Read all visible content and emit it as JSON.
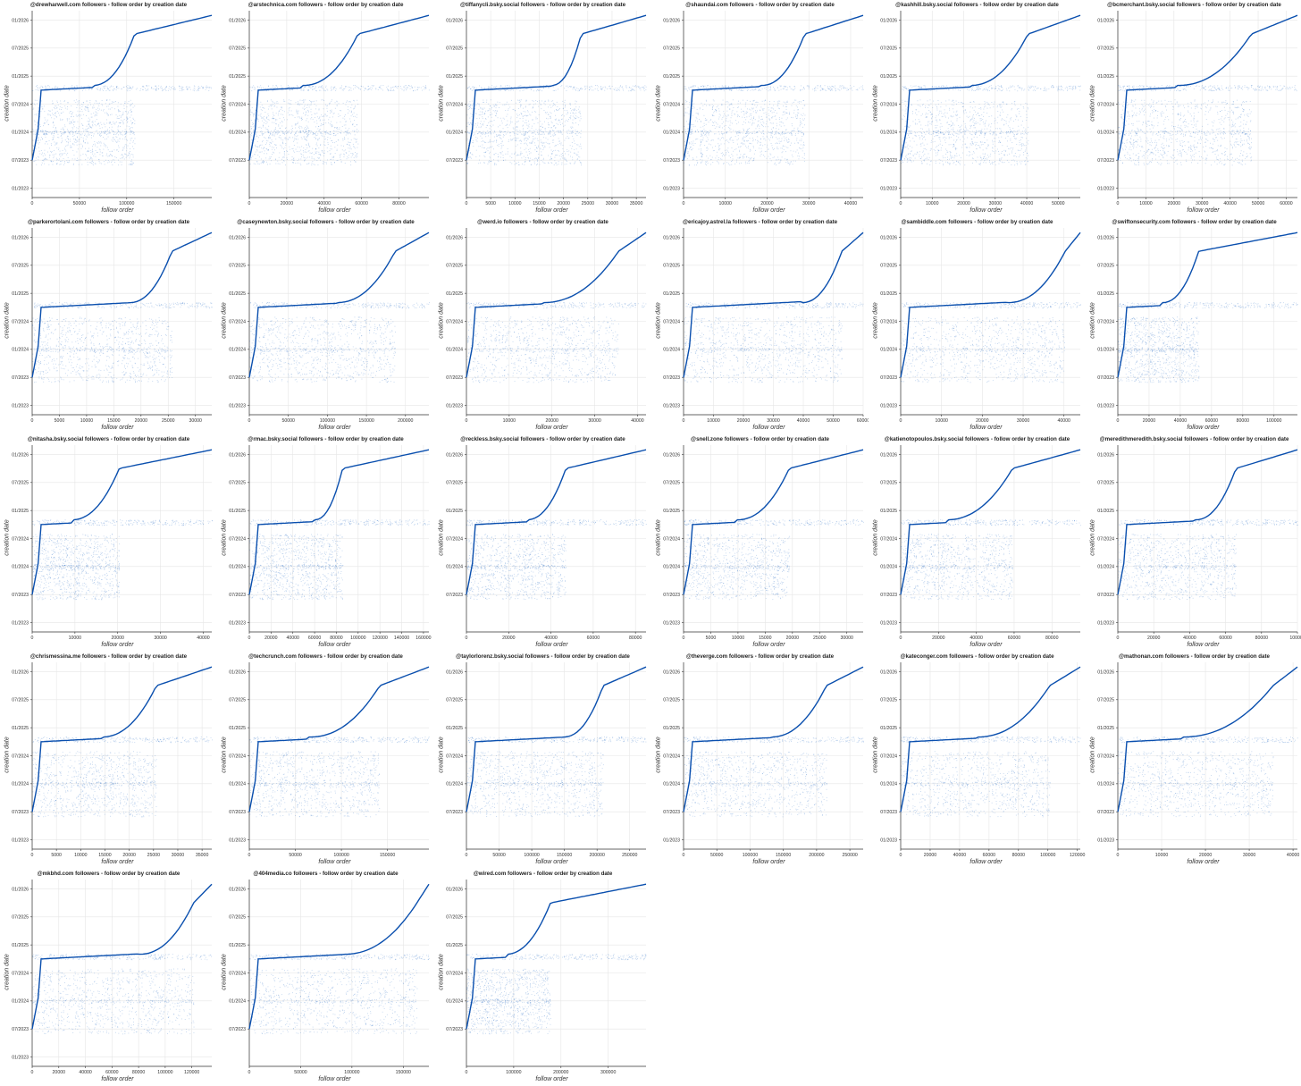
{
  "colors": {
    "points": "#1d63c2",
    "curve": "#0a4fae",
    "grid": "#e6e6e6",
    "axis": "#333333"
  },
  "chart_data": [
    {
      "type": "scatter",
      "title": "@drewharwell.com followers - follow order by creation date",
      "xlabel": "follow order",
      "ylabel": "creation date",
      "xlim": [
        0,
        190000
      ],
      "x_ticks": [
        "0",
        "50000",
        "100000",
        "150000"
      ],
      "y_ticks": [
        "01/2023",
        "07/2023",
        "01/2024",
        "07/2024",
        "01/2025",
        "07/2025",
        "01/2026"
      ],
      "grid": true,
      "legend": "none"
    },
    {
      "type": "scatter",
      "title": "@arstechnica.com followers - follow order by creation date",
      "xlabel": "follow order",
      "ylabel": "creation date",
      "xlim": [
        0,
        96000
      ],
      "x_ticks": [
        "0",
        "20000",
        "40000",
        "60000",
        "80000"
      ],
      "y_ticks": [
        "07/2023",
        "01/2024",
        "07/2024",
        "01/2025",
        "07/2025",
        "01/2026"
      ],
      "grid": true,
      "legend": "none"
    },
    {
      "type": "scatter",
      "title": "@tiffanycli.bsky.social followers - follow order by creation date",
      "xlabel": "follow order",
      "ylabel": "creation date",
      "xlim": [
        0,
        37000
      ],
      "x_ticks": [
        "0",
        "5000",
        "10000",
        "15000",
        "20000",
        "25000",
        "30000",
        "35000"
      ],
      "y_ticks": [
        "07/2023",
        "01/2024",
        "07/2024",
        "01/2025",
        "07/2025",
        "01/2026"
      ],
      "grid": true,
      "legend": "none"
    },
    {
      "type": "scatter",
      "title": "@shaundai.com followers - follow order by creation date",
      "xlabel": "follow order",
      "ylabel": "creation date",
      "xlim": [
        0,
        43000
      ],
      "x_ticks": [
        "0",
        "10000",
        "20000",
        "30000",
        "40000"
      ],
      "y_ticks": [
        "01/2023",
        "07/2023",
        "01/2024",
        "07/2024",
        "01/2025",
        "07/2025",
        "01/2026"
      ],
      "grid": true,
      "legend": "none"
    },
    {
      "type": "scatter",
      "title": "@kashhill.bsky.social followers - follow order by creation date",
      "xlabel": "follow order",
      "ylabel": "creation date",
      "xlim": [
        0,
        57000
      ],
      "x_ticks": [
        "0",
        "10000",
        "20000",
        "30000",
        "40000",
        "50000"
      ],
      "y_ticks": [
        "01/2023",
        "07/2023",
        "01/2024",
        "07/2024",
        "01/2025",
        "07/2025",
        "01/2026"
      ],
      "grid": true,
      "legend": "none"
    },
    {
      "type": "scatter",
      "title": "@bcmerchant.bsky.social followers - follow order by creation date",
      "xlabel": "follow order",
      "ylabel": "creation date",
      "xlim": [
        0,
        64000
      ],
      "x_ticks": [
        "0",
        "10000",
        "20000",
        "30000",
        "40000",
        "50000",
        "60000"
      ],
      "y_ticks": [
        "01/2023",
        "07/2023",
        "01/2024",
        "07/2024",
        "01/2025",
        "07/2025",
        "01/2026"
      ],
      "grid": true,
      "legend": "none"
    },
    {
      "type": "scatter",
      "title": "@parkerortolani.com followers - follow order by creation date",
      "xlabel": "follow order",
      "ylabel": "creation date",
      "xlim": [
        0,
        33000
      ],
      "x_ticks": [
        "0",
        "5000",
        "10000",
        "15000",
        "20000",
        "25000",
        "30000"
      ],
      "y_ticks": [
        "01/2023",
        "07/2023",
        "01/2024",
        "07/2024",
        "01/2025",
        "07/2025",
        "01/2026"
      ],
      "grid": true,
      "legend": "none"
    },
    {
      "type": "scatter",
      "title": "@caseynewton.bsky.social followers - follow order by creation date",
      "xlabel": "follow order",
      "ylabel": "creation date",
      "xlim": [
        0,
        230000
      ],
      "x_ticks": [
        "0",
        "50000",
        "100000",
        "150000",
        "200000"
      ],
      "y_ticks": [
        "01/2023",
        "07/2023",
        "01/2024",
        "07/2024",
        "01/2025",
        "07/2025",
        "01/2026"
      ],
      "grid": true,
      "legend": "none"
    },
    {
      "type": "scatter",
      "title": "@werd.io followers - follow order by creation date",
      "xlabel": "follow order",
      "ylabel": "creation date",
      "xlim": [
        0,
        42000
      ],
      "x_ticks": [
        "0",
        "10000",
        "20000",
        "30000",
        "40000"
      ],
      "y_ticks": [
        "01/2023",
        "07/2023",
        "01/2024",
        "07/2024",
        "01/2025",
        "07/2025",
        "01/2026"
      ],
      "grid": true,
      "legend": "none"
    },
    {
      "type": "scatter",
      "title": "@ericajoy.astrel.la followers - follow order by creation date",
      "xlabel": "follow order",
      "ylabel": "creation date",
      "xlim": [
        0,
        60000
      ],
      "x_ticks": [
        "0",
        "10000",
        "20000",
        "30000",
        "40000",
        "50000",
        "60000"
      ],
      "y_ticks": [
        "01/2023",
        "07/2023",
        "01/2024",
        "07/2024",
        "01/2025",
        "07/2025",
        "01/2026"
      ],
      "grid": true,
      "legend": "none"
    },
    {
      "type": "scatter",
      "title": "@sambiddle.com followers - follow order by creation date",
      "xlabel": "follow order",
      "ylabel": "creation date",
      "xlim": [
        0,
        44000
      ],
      "x_ticks": [
        "0",
        "10000",
        "20000",
        "30000",
        "40000"
      ],
      "y_ticks": [
        "01/2023",
        "07/2023",
        "01/2024",
        "07/2024",
        "01/2025",
        "07/2025",
        "01/2026"
      ],
      "grid": true,
      "legend": "none"
    },
    {
      "type": "scatter",
      "title": "@swiftonsecurity.com followers - follow order by creation date",
      "xlabel": "follow order",
      "ylabel": "creation date",
      "xlim": [
        0,
        115000
      ],
      "x_ticks": [
        "0",
        "20000",
        "40000",
        "60000",
        "80000",
        "100000"
      ],
      "y_ticks": [
        "01/2023",
        "07/2023",
        "01/2024",
        "07/2024",
        "01/2025",
        "07/2025",
        "01/2026"
      ],
      "grid": true,
      "legend": "none"
    },
    {
      "type": "scatter",
      "title": "@nitasha.bsky.social followers - follow order by creation date",
      "xlabel": "follow order",
      "ylabel": "creation date",
      "xlim": [
        0,
        42000
      ],
      "x_ticks": [
        "0",
        "10000",
        "20000",
        "30000",
        "40000"
      ],
      "y_ticks": [
        "01/2023",
        "07/2023",
        "01/2024",
        "07/2024",
        "01/2025",
        "07/2025",
        "01/2026"
      ],
      "grid": true,
      "legend": "none"
    },
    {
      "type": "scatter",
      "title": "@rmac.bsky.social followers - follow order by creation date",
      "xlabel": "follow order",
      "ylabel": "creation date",
      "xlim": [
        0,
        165000
      ],
      "x_ticks": [
        "0",
        "20000",
        "40000",
        "60000",
        "80000",
        "100000",
        "120000",
        "140000",
        "160000"
      ],
      "y_ticks": [
        "01/2023",
        "07/2023",
        "01/2024",
        "07/2024",
        "01/2025",
        "07/2025",
        "01/2026"
      ],
      "grid": true,
      "legend": "none"
    },
    {
      "type": "scatter",
      "title": "@reckless.bsky.social followers - follow order by creation date",
      "xlabel": "follow order",
      "ylabel": "creation date",
      "xlim": [
        0,
        85000
      ],
      "x_ticks": [
        "0",
        "20000",
        "40000",
        "60000",
        "80000"
      ],
      "y_ticks": [
        "07/2023",
        "01/2024",
        "07/2024",
        "01/2025",
        "07/2025",
        "01/2026"
      ],
      "grid": true,
      "legend": "none"
    },
    {
      "type": "scatter",
      "title": "@snell.zone followers - follow order by creation date",
      "xlabel": "follow order",
      "ylabel": "creation date",
      "xlim": [
        0,
        33000
      ],
      "x_ticks": [
        "0",
        "5000",
        "10000",
        "15000",
        "20000",
        "25000",
        "30000"
      ],
      "y_ticks": [
        "01/2023",
        "07/2023",
        "01/2024",
        "07/2024",
        "01/2025",
        "07/2025",
        "01/2026"
      ],
      "grid": true,
      "legend": "none"
    },
    {
      "type": "scatter",
      "title": "@katienotopoulos.bsky.social followers - follow order by creation date",
      "xlabel": "follow order",
      "ylabel": "creation date",
      "xlim": [
        0,
        95000
      ],
      "x_ticks": [
        "0",
        "20000",
        "40000",
        "60000",
        "80000"
      ],
      "y_ticks": [
        "01/2023",
        "07/2023",
        "01/2024",
        "07/2024",
        "01/2025",
        "07/2025",
        "01/2026"
      ],
      "grid": true,
      "legend": "none"
    },
    {
      "type": "scatter",
      "title": "@meredithmeredith.bsky.social followers - follow order by creation date",
      "xlabel": "follow order",
      "ylabel": "creation date",
      "xlim": [
        0,
        100000
      ],
      "x_ticks": [
        "0",
        "20000",
        "40000",
        "60000",
        "80000",
        "100000"
      ],
      "y_ticks": [
        "01/2023",
        "07/2023",
        "01/2024",
        "07/2024",
        "01/2025",
        "07/2025",
        "01/2026"
      ],
      "grid": true,
      "legend": "none"
    },
    {
      "type": "scatter",
      "title": "@chrismessina.me followers - follow order by creation date",
      "xlabel": "follow order",
      "ylabel": "creation date",
      "xlim": [
        0,
        37000
      ],
      "x_ticks": [
        "0",
        "5000",
        "10000",
        "15000",
        "20000",
        "25000",
        "30000",
        "35000"
      ],
      "y_ticks": [
        "01/2023",
        "07/2023",
        "01/2024",
        "07/2024",
        "01/2025",
        "07/2025",
        "01/2026"
      ],
      "grid": true,
      "legend": "none"
    },
    {
      "type": "scatter",
      "title": "@techcrunch.com followers - follow order by creation date",
      "xlabel": "follow order",
      "ylabel": "creation date",
      "xlim": [
        0,
        195000
      ],
      "x_ticks": [
        "0",
        "50000",
        "100000",
        "150000"
      ],
      "y_ticks": [
        "01/2023",
        "07/2023",
        "01/2024",
        "07/2024",
        "01/2025",
        "07/2025",
        "01/2026"
      ],
      "grid": true,
      "legend": "none"
    },
    {
      "type": "scatter",
      "title": "@taylorlorenz.bsky.social followers - follow order by creation date",
      "xlabel": "follow order",
      "ylabel": "creation date",
      "xlim": [
        0,
        275000
      ],
      "x_ticks": [
        "0",
        "50000",
        "100000",
        "150000",
        "200000",
        "250000"
      ],
      "y_ticks": [
        "07/2023",
        "01/2024",
        "07/2024",
        "01/2025",
        "07/2025",
        "01/2026"
      ],
      "grid": true,
      "legend": "none"
    },
    {
      "type": "scatter",
      "title": "@theverge.com followers - follow order by creation date",
      "xlabel": "follow order",
      "ylabel": "creation date",
      "xlim": [
        0,
        270000
      ],
      "x_ticks": [
        "0",
        "50000",
        "100000",
        "150000",
        "200000",
        "250000"
      ],
      "y_ticks": [
        "01/2023",
        "07/2023",
        "01/2024",
        "07/2024",
        "01/2025",
        "07/2025",
        "01/2026"
      ],
      "grid": true,
      "legend": "none"
    },
    {
      "type": "scatter",
      "title": "@kateconger.com followers - follow order by creation date",
      "xlabel": "follow order",
      "ylabel": "creation date",
      "xlim": [
        0,
        122000
      ],
      "x_ticks": [
        "0",
        "20000",
        "40000",
        "60000",
        "80000",
        "100000",
        "120000"
      ],
      "y_ticks": [
        "01/2023",
        "07/2023",
        "01/2024",
        "07/2024",
        "01/2025",
        "07/2025",
        "01/2026"
      ],
      "grid": true,
      "legend": "none"
    },
    {
      "type": "scatter",
      "title": "@mathonan.com followers - follow order by creation date",
      "xlabel": "follow order",
      "ylabel": "creation date",
      "xlim": [
        0,
        41000
      ],
      "x_ticks": [
        "0",
        "10000",
        "20000",
        "30000",
        "40000"
      ],
      "y_ticks": [
        "01/2023",
        "07/2023",
        "01/2024",
        "07/2024",
        "01/2025",
        "07/2025",
        "01/2026"
      ],
      "grid": true,
      "legend": "none"
    },
    {
      "type": "scatter",
      "title": "@mkbhd.com followers - follow order by creation date",
      "xlabel": "follow order",
      "ylabel": "creation date",
      "xlim": [
        0,
        135000
      ],
      "x_ticks": [
        "0",
        "20000",
        "40000",
        "60000",
        "80000",
        "100000",
        "120000"
      ],
      "y_ticks": [
        "01/2023",
        "07/2023",
        "01/2024",
        "07/2024",
        "01/2025",
        "07/2025",
        "01/2026"
      ],
      "grid": true,
      "legend": "none"
    },
    {
      "type": "scatter",
      "title": "@404media.co followers - follow order by creation date",
      "xlabel": "follow order",
      "ylabel": "creation date",
      "xlim": [
        0,
        175000
      ],
      "x_ticks": [
        "0",
        "50000",
        "100000",
        "150000"
      ],
      "y_ticks": [
        "07/2023",
        "01/2024",
        "07/2024",
        "01/2025",
        "07/2025",
        "01/2026"
      ],
      "grid": true,
      "legend": "none"
    },
    {
      "type": "scatter",
      "title": "@wired.com followers - follow order by creation date",
      "xlabel": "follow order",
      "ylabel": "creation date",
      "xlim": [
        0,
        380000
      ],
      "x_ticks": [
        "0",
        "100000",
        "200000",
        "300000"
      ],
      "y_ticks": [
        "07/2023",
        "01/2024",
        "07/2024",
        "01/2025",
        "07/2025",
        "01/2026"
      ],
      "grid": true,
      "legend": "none"
    }
  ]
}
